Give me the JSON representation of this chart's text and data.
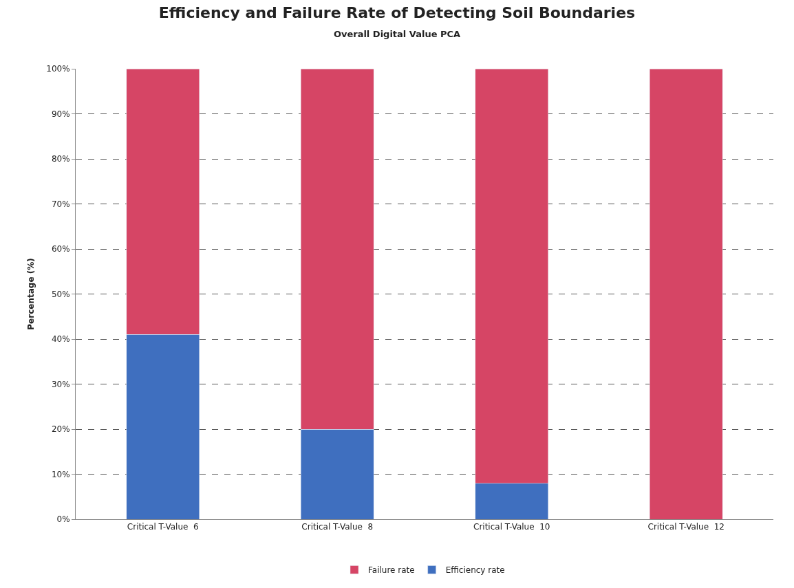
{
  "chart_data": {
    "type": "bar",
    "title": "Efficiency and Failure Rate of Detecting Soil Boundaries",
    "subtitle": "Overall Digital Value PCA",
    "ylabel": "Percentage (%)",
    "categories": [
      "Critical T-Value  6",
      "Critical T-Value  8",
      "Critical T-Value  10",
      "Critical T-Value  12"
    ],
    "series": [
      {
        "name": "Efficiency rate",
        "color": "#3f6fbf",
        "values": [
          41,
          20,
          8,
          0
        ]
      },
      {
        "name": "Failure rate",
        "color": "#d64565",
        "values": [
          59,
          80,
          92,
          100
        ]
      }
    ],
    "stacked": true,
    "ylim": [
      0,
      100
    ],
    "yticks": [
      {
        "value": 0,
        "label": "0%"
      },
      {
        "value": 10,
        "label": "10%"
      },
      {
        "value": 20,
        "label": "20%"
      },
      {
        "value": 30,
        "label": "30%"
      },
      {
        "value": 40,
        "label": "40%"
      },
      {
        "value": 50,
        "label": "50%"
      },
      {
        "value": 60,
        "label": "60%"
      },
      {
        "value": 70,
        "label": "70%"
      },
      {
        "value": 80,
        "label": "80%"
      },
      {
        "value": 90,
        "label": "90%"
      },
      {
        "value": 100,
        "label": "100%"
      }
    ],
    "grid": "y",
    "legend": "bottom"
  }
}
